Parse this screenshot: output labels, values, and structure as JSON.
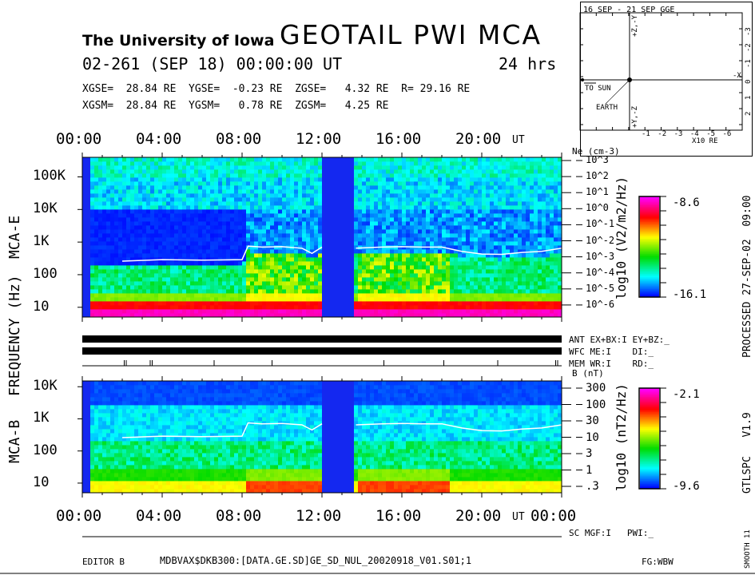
{
  "header": {
    "institution": "The University of Iowa",
    "title": "GEOTAIL PWI MCA",
    "datetime": "02-261 (SEP 18) 00:00:00 UT",
    "duration": "24 hrs",
    "gse_line": "XGSE=  28.84 RE  YGSE=  -0.23 RE  ZGSE=   4.32 RE  R= 29.16 RE",
    "gsm_line": "XGSM=  28.84 RE  YGSM=   0.78 RE  ZGSM=   4.25 RE"
  },
  "orbit_plot": {
    "title": "16 SEP - 21 SEP  GGE",
    "x_axis_label": "X10 RE",
    "x_ticks": [
      "-1",
      "-2",
      "-3",
      "-4",
      "-5",
      "-6"
    ],
    "y_ticks": [
      "-3",
      "-2",
      "-1",
      "0",
      "1",
      "2"
    ],
    "labels": {
      "to_sun": "TO SUN",
      "earth": "EARTH",
      "minus_x": "-X",
      "top_axis": "+Z,-Y",
      "bottom_axis": "+Y,-Z"
    }
  },
  "side": {
    "processed": "PROCESSED 27-SEP-02  09:00",
    "version": "GTLSPC   V1.9",
    "smooth": "SMOOTH 11"
  },
  "status": {
    "ant": "ANT EX+BX:I EY+BZ:_",
    "wfc": "WFC ME:I    DI:_",
    "mem": "MEM WR:I    RD:_",
    "sc": "SC MGF:I   PWI:_"
  },
  "footer": {
    "editor": "EDITOR B",
    "file": "MDBVAX$DKB300:[DATA.GE.SD]GE_SD_NUL_20020918_V01.S01;1",
    "fg": "FG:WBW"
  },
  "colors": {
    "gap_blue": "#1428f0",
    "line": "#ffffff"
  },
  "chart_data": [
    {
      "type": "heatmap",
      "name": "MCA-E",
      "ylabel": "FREQUENCY (Hz)",
      "x_ticks": [
        "00:00",
        "04:00",
        "08:00",
        "12:00",
        "16:00",
        "20:00"
      ],
      "x_unit": "UT",
      "xlim_hours": [
        0,
        24
      ],
      "y_ticks": [
        "100K",
        "10K",
        "1K",
        "100",
        "10"
      ],
      "y_scale": "log",
      "ylim_hz": [
        5,
        400000
      ],
      "right_axis_label": "Ne (cm-3)",
      "right_ticks": [
        "10^3",
        "10^2",
        "10^1",
        "10^0",
        "10^-1",
        "10^-2",
        "10^-3",
        "10^-4",
        "10^-5",
        "10^-6"
      ],
      "colorbar": {
        "label": "log10 (V2/m2/Hz)",
        "max": "-8.6",
        "min": "-16.1"
      },
      "data_gaps_hours": [
        [
          0,
          0.5
        ],
        [
          12.1,
          13.7
        ]
      ],
      "line_hours": [
        0,
        2,
        4,
        6,
        8,
        8.3,
        9,
        10,
        11,
        11.5,
        12,
        13.7,
        15,
        16,
        17,
        18,
        19,
        20,
        21,
        22,
        23,
        24
      ],
      "line_hz": [
        280,
        260,
        290,
        280,
        290,
        750,
        700,
        720,
        650,
        450,
        700,
        650,
        700,
        720,
        700,
        700,
        520,
        430,
        420,
        480,
        520,
        650
      ]
    },
    {
      "type": "heatmap",
      "name": "MCA-B",
      "x_ticks": [
        "00:00",
        "04:00",
        "08:00",
        "12:00",
        "16:00",
        "20:00",
        "00:00"
      ],
      "x_unit": "UT",
      "xlim_hours": [
        0,
        24
      ],
      "y_ticks": [
        "10K",
        "1K",
        "100",
        "10"
      ],
      "y_scale": "log",
      "ylim_hz": [
        5,
        15000
      ],
      "right_axis_label": "B (nT)",
      "right_ticks": [
        "300",
        "100",
        "30",
        "10",
        "3",
        "1",
        ".3"
      ],
      "colorbar": {
        "label": "log10 (nT2/Hz)",
        "max": "-2.1",
        "min": "-9.6"
      },
      "data_gaps_hours": [
        [
          0,
          0.5
        ],
        [
          12.1,
          13.7
        ]
      ],
      "line_hours": [
        0,
        2,
        4,
        6,
        8,
        8.3,
        9,
        10,
        11,
        11.5,
        12,
        13.7,
        15,
        16,
        17,
        18,
        19,
        20,
        21,
        22,
        23,
        24
      ],
      "line_hz": [
        280,
        260,
        290,
        280,
        290,
        750,
        700,
        720,
        650,
        450,
        700,
        650,
        700,
        720,
        700,
        700,
        520,
        430,
        420,
        480,
        520,
        650
      ]
    }
  ]
}
